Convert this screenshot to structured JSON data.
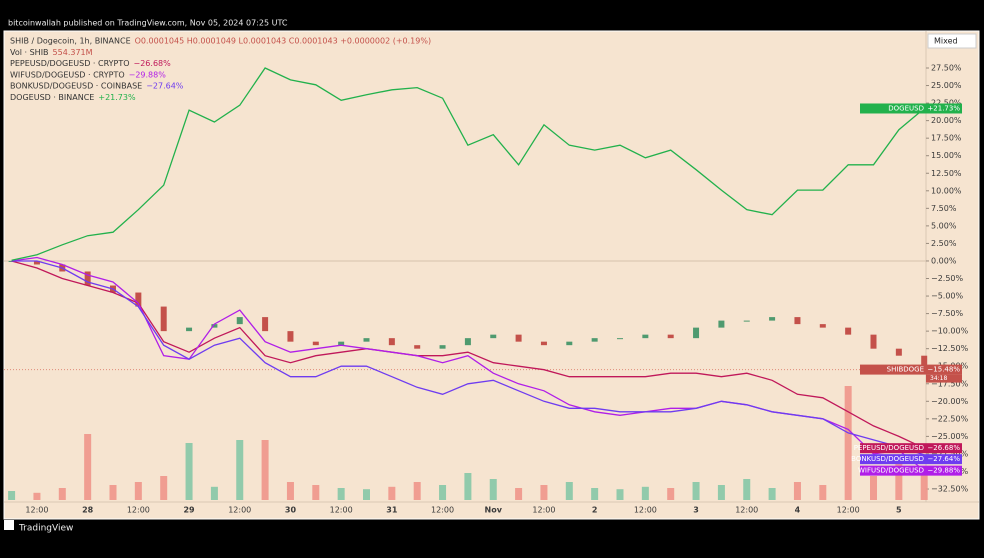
{
  "header": "bitcoinwallah published on TradingView.com, Nov 05, 2024 07:25 UTC",
  "footer": "TradingView",
  "scale_mode": "Mixed",
  "chart_data": {
    "type": "line",
    "categories": [
      null,
      "12:00",
      null,
      "28",
      null,
      "12:00",
      null,
      "29",
      null,
      "12:00",
      null,
      "30",
      null,
      "12:00",
      null,
      "31",
      null,
      "12:00",
      null,
      "Nov",
      null,
      "12:00",
      null,
      "2",
      null,
      "12:00",
      null,
      "3",
      null,
      "12:00",
      null,
      "4",
      null,
      "12:00",
      null,
      "5",
      null
    ],
    "ylim": [
      -34.35,
      32.63
    ],
    "yticks": [
      {
        "value": 27.5,
        "label": "27.50%"
      },
      {
        "value": 25,
        "label": "25.00%"
      },
      {
        "value": 22.5,
        "label": "22.50%"
      },
      {
        "value": 20,
        "label": "20.00%"
      },
      {
        "value": 17.5,
        "label": "17.50%"
      },
      {
        "value": 15,
        "label": "15.00%"
      },
      {
        "value": 12.5,
        "label": "12.50%"
      },
      {
        "value": 10,
        "label": "10.00%"
      },
      {
        "value": 7.5,
        "label": "7.50%"
      },
      {
        "value": 5,
        "label": "5.00%"
      },
      {
        "value": 2.5,
        "label": "2.50%"
      },
      {
        "value": 0,
        "label": "0.00%"
      },
      {
        "value": -2.5,
        "label": "−2.50%"
      },
      {
        "value": -5,
        "label": "−5.00%"
      },
      {
        "value": -7.5,
        "label": "−7.50%"
      },
      {
        "value": -10,
        "label": "−10.00%"
      },
      {
        "value": -12.5,
        "label": "−12.50%"
      },
      {
        "value": -15,
        "label": "−15.00%"
      },
      {
        "value": -17.5,
        "label": "−17.50%"
      },
      {
        "value": -20,
        "label": "−20.00%"
      },
      {
        "value": -22.5,
        "label": "−22.50%"
      },
      {
        "value": -25,
        "label": "−25.00%"
      },
      {
        "value": -27.5,
        "label": "−27.50%"
      },
      {
        "value": -30,
        "label": "−30.00%"
      },
      {
        "value": -32.5,
        "label": "−32.50%"
      }
    ],
    "candles": {
      "name": "SHIBDOGE",
      "title": "SHIB / Dogecoin, 1h, BINANCE",
      "ohlc": "O0.0001045 H0.0001049 L0.0001043 C0.0001043 +0.0000002 (+0.19%)",
      "countdown": "34:18",
      "up_color": "#4f9a6f",
      "down_color": "#c4514a",
      "values": [
        0,
        -0.5,
        -1.5,
        -3.5,
        -4.5,
        -6.5,
        -10,
        -9.5,
        -9,
        -8,
        -10,
        -11.5,
        -12,
        -11.5,
        -11,
        -12,
        -12.5,
        -12,
        -11,
        -10.5,
        -11.5,
        -12,
        -11.5,
        -11,
        -11,
        -10.5,
        -11,
        -9.5,
        -8.5,
        -8.5,
        -8,
        -9,
        -9.5,
        -10.5,
        -12.5,
        -13.5,
        -15.48
      ],
      "value_labels": [
        null,
        null,
        null,
        null,
        null,
        null,
        null,
        null,
        null,
        null,
        null,
        null,
        null,
        null,
        null,
        null,
        null,
        null,
        null,
        null,
        null,
        null,
        null,
        null,
        null,
        null,
        null,
        null,
        null,
        null,
        null,
        null,
        null,
        null,
        null,
        null,
        "−15.48%"
      ]
    },
    "volume": {
      "label": "Vol · SHIB",
      "vlim": [
        0,
        2000
      ],
      "up_color": "#86c7a6",
      "down_color": "#f0958a",
      "values": [
        150,
        120,
        200,
        1100,
        250,
        300,
        400,
        950,
        220,
        1000,
        1000,
        300,
        250,
        200,
        180,
        220,
        300,
        250,
        450,
        350,
        200,
        250,
        300,
        200,
        180,
        220,
        200,
        300,
        250,
        350,
        200,
        300,
        250,
        1900,
        400,
        600,
        554.371
      ],
      "value_labels": [
        null,
        null,
        null,
        null,
        null,
        null,
        null,
        null,
        null,
        null,
        null,
        null,
        null,
        null,
        null,
        null,
        null,
        null,
        null,
        null,
        null,
        null,
        null,
        null,
        null,
        null,
        null,
        null,
        null,
        null,
        null,
        null,
        null,
        null,
        null,
        null,
        "554.371M"
      ]
    },
    "series": [
      {
        "name": "PEPEUSD/DOGEUSD",
        "legend_label": "PEPEUSD/DOGEUSD · CRYPTO",
        "color": "#c0185a",
        "values": [
          0,
          -1,
          -2.5,
          -3.5,
          -4.5,
          -6,
          -11.5,
          -13,
          -11,
          -9.5,
          -13.5,
          -14.5,
          -13.5,
          -13,
          -12.5,
          -13,
          -13.5,
          -13.5,
          -13,
          -14.5,
          -15,
          -15.5,
          -16.5,
          -16.5,
          -16.5,
          -16.5,
          -16,
          -16,
          -16.5,
          -16,
          -17,
          -19,
          -19.5,
          -21.5,
          -23.5,
          -25,
          -26.68
        ],
        "value_labels": [
          null,
          null,
          null,
          null,
          null,
          null,
          null,
          null,
          null,
          null,
          null,
          null,
          null,
          null,
          null,
          null,
          null,
          null,
          null,
          null,
          null,
          null,
          null,
          null,
          null,
          null,
          null,
          null,
          null,
          null,
          null,
          null,
          null,
          null,
          null,
          null,
          "−26.68%"
        ]
      },
      {
        "name": "WIFUSD/DOGEUSD",
        "legend_label": "WIFUSD/DOGEUSD · CRYPTO",
        "color": "#b01ee8",
        "values": [
          0,
          0.5,
          -0.5,
          -2,
          -3,
          -6,
          -13.5,
          -14,
          -9,
          -7,
          -11.5,
          -13,
          -12.5,
          -12,
          -12.5,
          -13,
          -13.5,
          -14.5,
          -13.5,
          -16,
          -17.5,
          -18.5,
          -20.5,
          -21.5,
          -22,
          -21.5,
          -21,
          -21,
          -20,
          -20.5,
          -21.5,
          -22,
          -22.5,
          -24,
          -27.5,
          -27,
          -29.88
        ],
        "value_labels": [
          null,
          null,
          null,
          null,
          null,
          null,
          null,
          null,
          null,
          null,
          null,
          null,
          null,
          null,
          null,
          null,
          null,
          null,
          null,
          null,
          null,
          null,
          null,
          null,
          null,
          null,
          null,
          null,
          null,
          null,
          null,
          null,
          null,
          null,
          null,
          null,
          "−29.88%"
        ]
      },
      {
        "name": "BONKUSD/DOGEUSD",
        "legend_label": "BONKUSD/DOGEUSD · COINBASE",
        "color": "#6e3cf0",
        "values": [
          0,
          0,
          -1,
          -3,
          -4,
          -6.5,
          -12,
          -14,
          -12,
          -11,
          -14.5,
          -16.5,
          -16.5,
          -15,
          -15,
          -16.5,
          -18,
          -19,
          -17.5,
          -17,
          -18.5,
          -20,
          -21,
          -21,
          -21.5,
          -21.5,
          -21.5,
          -21,
          -20,
          -20.5,
          -21.5,
          -22,
          -22.5,
          -24.5,
          -25.5,
          -26.5,
          -27.64
        ],
        "value_labels": [
          null,
          null,
          null,
          null,
          null,
          null,
          null,
          null,
          null,
          null,
          null,
          null,
          null,
          null,
          null,
          null,
          null,
          null,
          null,
          null,
          null,
          null,
          null,
          null,
          null,
          null,
          null,
          null,
          null,
          null,
          null,
          null,
          null,
          null,
          null,
          null,
          "−27.64%"
        ]
      },
      {
        "name": "DOGEUSD",
        "legend_label": "DOGEUSD · BINANCE",
        "color": "#22b14c",
        "values": [
          0.1,
          0.9,
          2.3,
          3.6,
          4.1,
          7.3,
          10.8,
          21.5,
          19.8,
          22.2,
          27.5,
          25.8,
          25.1,
          22.9,
          23.7,
          24.4,
          24.7,
          23.2,
          16.5,
          18,
          13.7,
          19.4,
          16.5,
          15.8,
          16.5,
          14.7,
          15.8,
          13,
          10.1,
          7.3,
          6.6,
          10.1,
          10.1,
          13.7,
          13.7,
          18.7,
          21.73
        ],
        "value_labels": [
          null,
          null,
          null,
          null,
          null,
          null,
          null,
          null,
          null,
          null,
          null,
          null,
          null,
          null,
          null,
          null,
          null,
          null,
          null,
          null,
          null,
          null,
          null,
          null,
          null,
          null,
          null,
          null,
          null,
          null,
          null,
          null,
          null,
          null,
          null,
          null,
          "+21.73%"
        ]
      }
    ]
  }
}
